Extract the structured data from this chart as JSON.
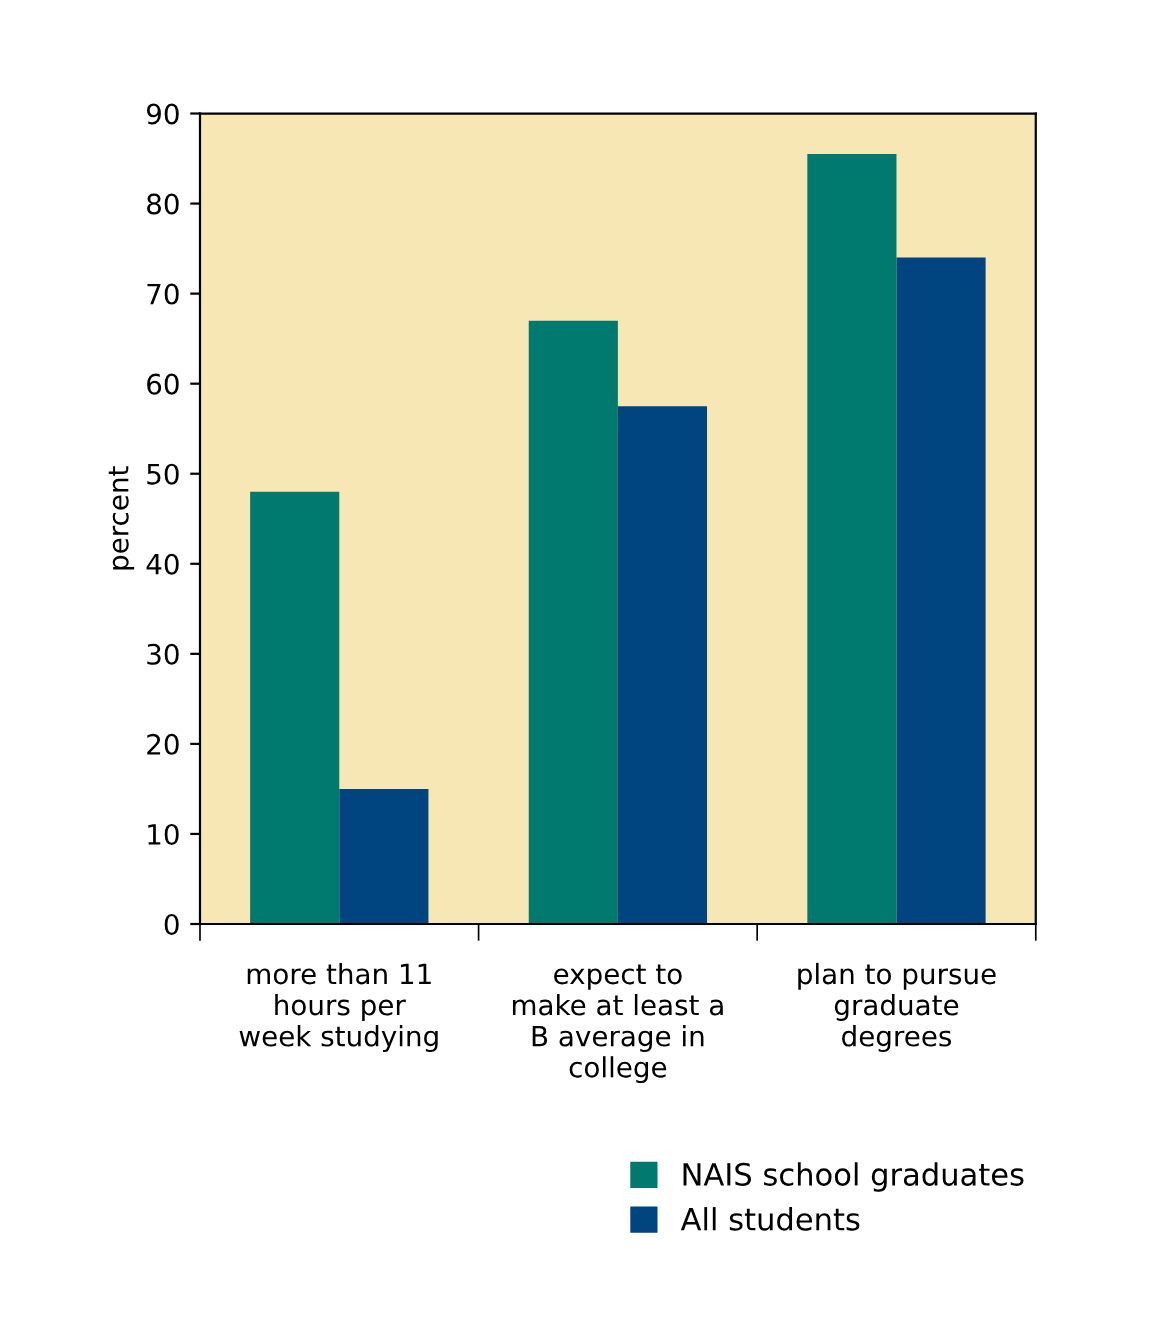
{
  "chart_data": {
    "type": "bar",
    "ylabel": "percent",
    "categories": [
      "more than 11\nhours per\nweek studying",
      "expect to\nmake at least a\nB average in\ncollege",
      "plan to pursue\ngraduate\ndegrees"
    ],
    "series": [
      {
        "name": "NAIS school graduates",
        "color": "#007a6e",
        "values": [
          48,
          67,
          85.5
        ]
      },
      {
        "name": "All students",
        "color": "#00457f",
        "values": [
          15,
          57.5,
          74
        ]
      }
    ],
    "ylim": [
      0,
      90
    ],
    "yticks": [
      0,
      10,
      20,
      30,
      40,
      50,
      60,
      70,
      80,
      90
    ],
    "grid": false,
    "legend": "bottom right"
  }
}
